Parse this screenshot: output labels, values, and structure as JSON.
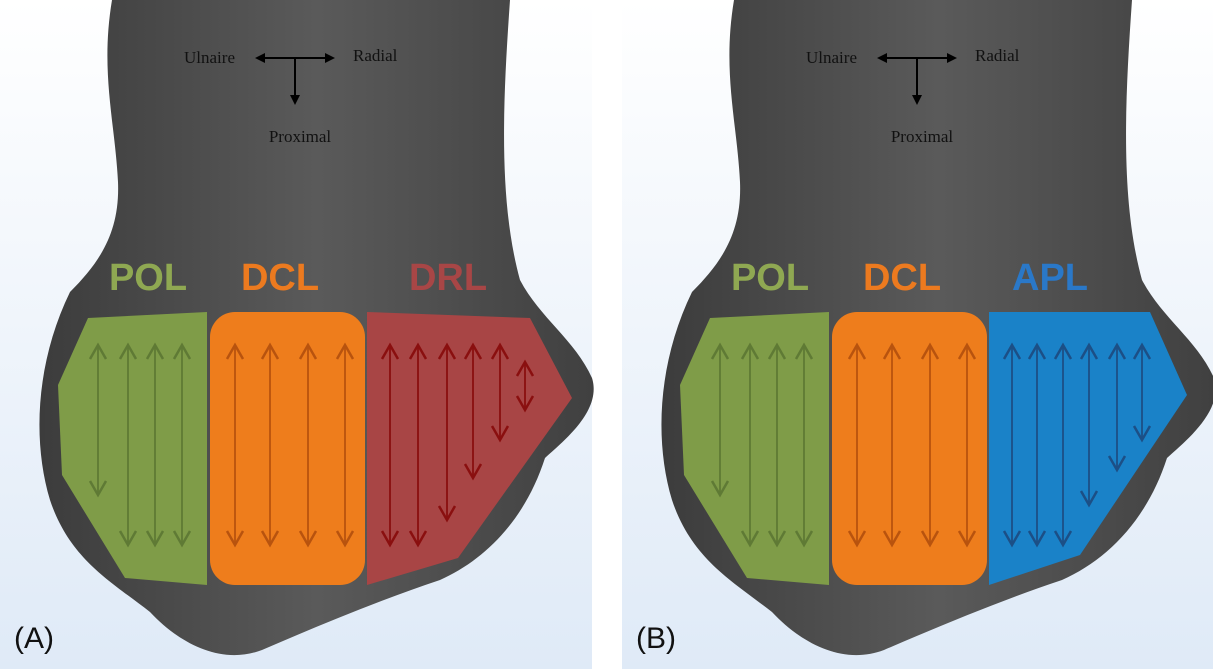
{
  "panels": [
    {
      "label": "(A)",
      "directions": {
        "ulnar": "Ulnaire",
        "radial": "Radial",
        "proximal": "Proximal"
      },
      "ligaments": [
        {
          "name": "POL"
        },
        {
          "name": "DCL"
        },
        {
          "name": "DRL"
        }
      ]
    },
    {
      "label": "(B)",
      "directions": {
        "ulnar": "Ulnaire",
        "radial": "Radial",
        "proximal": "Proximal"
      },
      "ligaments": [
        {
          "name": "POL"
        },
        {
          "name": "DCL"
        },
        {
          "name": "APL"
        }
      ]
    }
  ]
}
